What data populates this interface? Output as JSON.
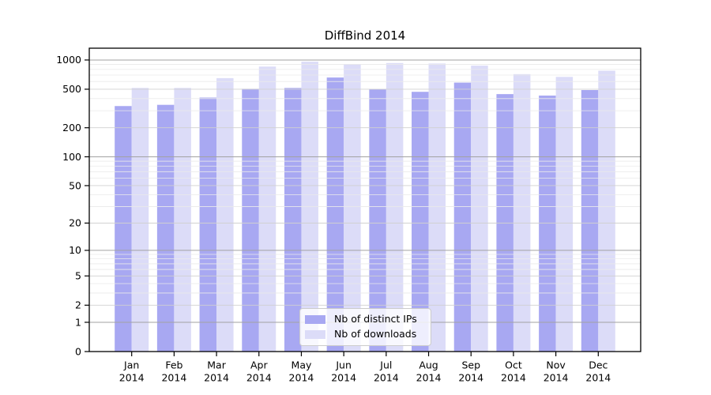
{
  "chart_data": {
    "type": "bar",
    "title": "DiffBind 2014",
    "year": "2014",
    "months": [
      "Jan",
      "Feb",
      "Mar",
      "Apr",
      "May",
      "Jun",
      "Jul",
      "Aug",
      "Sep",
      "Oct",
      "Nov",
      "Dec"
    ],
    "categories": [
      "Jan 2014",
      "Feb 2014",
      "Mar 2014",
      "Apr 2014",
      "May 2014",
      "Jun 2014",
      "Jul 2014",
      "Aug 2014",
      "Sep 2014",
      "Oct 2014",
      "Nov 2014",
      "Dec 2014"
    ],
    "series": [
      {
        "name": "Nb of distinct IPs",
        "color": "#a8a8f2",
        "values": [
          335,
          345,
          410,
          505,
          515,
          660,
          500,
          470,
          585,
          445,
          430,
          490
        ]
      },
      {
        "name": "Nb of downloads",
        "color": "#dcdcf8",
        "values": [
          515,
          515,
          650,
          855,
          960,
          910,
          930,
          920,
          875,
          715,
          670,
          775
        ]
      }
    ],
    "y_axis": {
      "scale": "log10(value+1)",
      "ticks": [
        0,
        1,
        2,
        5,
        10,
        20,
        50,
        100,
        200,
        500,
        1000
      ],
      "minor_gridlines": [
        3,
        4,
        6,
        7,
        8,
        9,
        30,
        40,
        60,
        70,
        80,
        90,
        300,
        400,
        600,
        700,
        800,
        900
      ]
    },
    "ylim": [
      0,
      1000
    ],
    "grid": true,
    "legend_position": "lower center (inside plot)"
  },
  "colors": {
    "bar_distinct_ips": "#a8a8f2",
    "bar_downloads": "#dcdcf8",
    "grid_major": "#a2a2a2",
    "grid_mid": "#d0d0d0",
    "grid_minor": "#eaeaea",
    "axis": "#000000",
    "legend_border": "#cccccc",
    "background": "#ffffff"
  }
}
